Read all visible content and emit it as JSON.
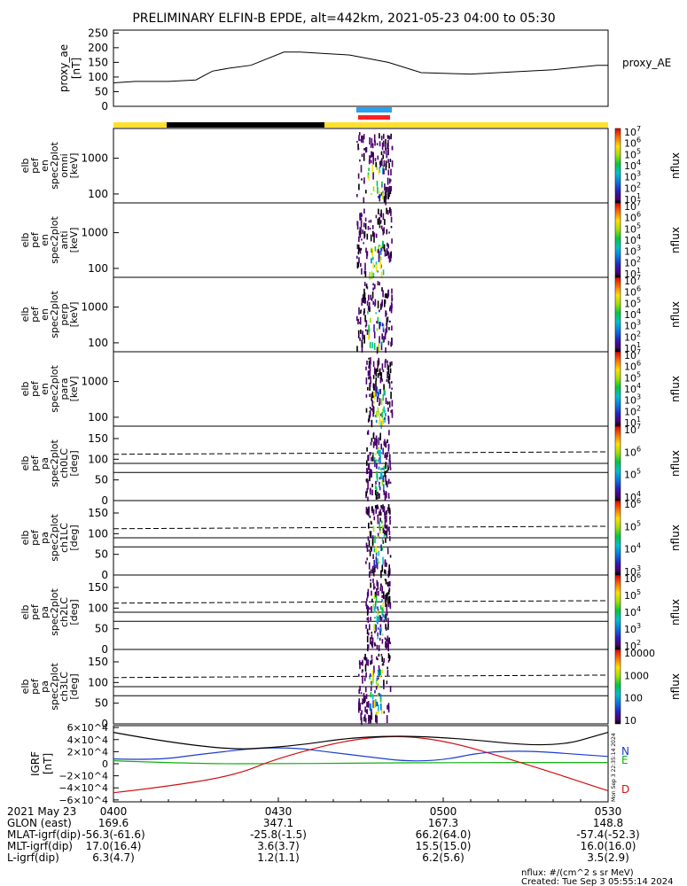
{
  "title": "PRELIMINARY ELFIN-B EPDE, alt=442km, 2021-05-23 04:00 to 05:30",
  "colors": {
    "sun": "#ffe030",
    "shadow": "#000000",
    "science_blue": "#2aa0f0",
    "science_red": "#ff2020",
    "n": "#1a3cd0",
    "e": "#10b010",
    "d": "#d01010"
  },
  "ae_panel": {
    "ylabel": [
      "proxy_ae",
      "[nT]"
    ],
    "legend": "proxy_AE",
    "ticks": [
      "250",
      "200",
      "150",
      "100",
      "50",
      "0"
    ],
    "ylim": [
      0,
      260
    ]
  },
  "spec_panels": [
    {
      "ylabel": [
        "elb",
        "pef",
        "en",
        "spec2plot",
        "omni",
        "[keV]"
      ],
      "ticks": [
        "1000",
        "100"
      ],
      "zlabel": "nflux",
      "zticks": [
        "10^7",
        "10^6",
        "10^5",
        "10^4",
        "10^3",
        "10^2",
        "10^1"
      ]
    },
    {
      "ylabel": [
        "elb",
        "pef",
        "en",
        "spec2plot",
        "anti",
        "[keV]"
      ],
      "ticks": [
        "1000",
        "100"
      ],
      "zlabel": "nflux",
      "zticks": [
        "10^7",
        "10^6",
        "10^5",
        "10^4",
        "10^3",
        "10^2",
        "10^1"
      ]
    },
    {
      "ylabel": [
        "elb",
        "pef",
        "en",
        "spec2plot",
        "perp",
        "[keV]"
      ],
      "ticks": [
        "1000",
        "100"
      ],
      "zlabel": "nflux",
      "zticks": [
        "10^7",
        "10^6",
        "10^5",
        "10^4",
        "10^3",
        "10^2",
        "10^1"
      ]
    },
    {
      "ylabel": [
        "elb",
        "pef",
        "en",
        "spec2plot",
        "para",
        "[keV]"
      ],
      "ticks": [
        "1000",
        "100"
      ],
      "zlabel": "nflux",
      "zticks": [
        "10^7",
        "10^6",
        "10^5",
        "10^4",
        "10^3",
        "10^2",
        "10^1"
      ]
    }
  ],
  "pa_panels": [
    {
      "ylabel": [
        "elb",
        "pef",
        "pa",
        "spec2plot",
        "ch0LC",
        "[deg]"
      ],
      "ticks": [
        "150",
        "100",
        "50",
        "0"
      ],
      "zlabel": "nflux",
      "zticks": [
        "10^7",
        "10^6",
        "10^5",
        "10^4"
      ]
    },
    {
      "ylabel": [
        "elb",
        "pef",
        "pa",
        "spec2plot",
        "ch1LC",
        "[deg]"
      ],
      "ticks": [
        "150",
        "100",
        "50",
        "0"
      ],
      "zlabel": "nflux",
      "zticks": [
        "10^6",
        "10^5",
        "10^4",
        "10^3"
      ]
    },
    {
      "ylabel": [
        "elb",
        "pef",
        "pa",
        "spec2plot",
        "ch2LC",
        "[deg]"
      ],
      "ticks": [
        "150",
        "100",
        "50",
        "0"
      ],
      "zlabel": "nflux",
      "zticks": [
        "10^6",
        "10^5",
        "10^4",
        "10^3",
        "10^2"
      ]
    },
    {
      "ylabel": [
        "elb",
        "pef",
        "pa",
        "spec2plot",
        "ch3LC",
        "[deg]"
      ],
      "ticks": [
        "150",
        "100",
        "50",
        "0"
      ],
      "zlabel": "nflux",
      "zticks": [
        "10000",
        "1000",
        "100",
        "10"
      ]
    }
  ],
  "igrf_panel": {
    "ylabel": [
      "IGRF",
      "[nT]"
    ],
    "ticks": [
      "6×10^4",
      "4×10^4",
      "2×10^4",
      "0",
      "−2×10^4",
      "−4×10^4",
      "−6×10^4"
    ],
    "legend": [
      "N",
      "E",
      "D"
    ],
    "side_note": "Mon Sep  3 22:35:14 2024"
  },
  "chart_data": [
    {
      "type": "line",
      "title": "PRELIMINARY ELFIN-B EPDE, alt=442km, 2021-05-23 04:00 to 05:30",
      "ylabel": "proxy_ae [nT]",
      "ylim": [
        0,
        260
      ],
      "series": [
        {
          "name": "proxy_AE",
          "x": [
            0,
            4,
            10,
            15,
            18,
            21,
            25,
            31,
            34,
            43,
            50,
            56,
            65,
            70,
            80,
            88,
            90
          ],
          "values": [
            80,
            85,
            85,
            90,
            120,
            130,
            140,
            185,
            185,
            175,
            150,
            115,
            110,
            115,
            125,
            140,
            140
          ]
        }
      ]
    },
    {
      "type": "line",
      "ylabel": "IGRF [nT]",
      "ylim": [
        -60000,
        60000
      ],
      "series": [
        {
          "name": "N",
          "x": [
            0,
            8,
            15,
            30,
            43,
            57,
            70,
            90
          ],
          "values": [
            8000,
            6000,
            15000,
            30000,
            15000,
            0,
            25000,
            12000
          ]
        },
        {
          "name": "E",
          "x": [
            0,
            15,
            30,
            43,
            60,
            90
          ],
          "values": [
            5000,
            0,
            0,
            1000,
            2000,
            2000
          ]
        },
        {
          "name": "D",
          "x": [
            0,
            8,
            22,
            30,
            45,
            58,
            75,
            90
          ],
          "values": [
            -48000,
            -40000,
            -20000,
            10000,
            45000,
            45000,
            0,
            -45000
          ]
        },
        {
          "name": "total",
          "x": [
            0,
            18,
            32,
            45,
            60,
            80,
            90
          ],
          "values": [
            52000,
            22000,
            28000,
            46000,
            45000,
            26000,
            52000
          ]
        }
      ]
    }
  ],
  "time_axis": {
    "row_labels": [
      "2021 May 23",
      "GLON (east)",
      "MLAT-igrf(dip)",
      "MLT-igrf(dip)",
      "L-igrf(dip)"
    ],
    "columns": [
      {
        "time": "0400",
        "glon": "169.6",
        "mlat": "-56.3(-61.6)",
        "mlt": "17.0(16.4)",
        "l": "6.3(4.7)"
      },
      {
        "time": "0430",
        "glon": "347.1",
        "mlat": "-25.8(-1.5)",
        "mlt": "3.6(3.7)",
        "l": "1.2(1.1)"
      },
      {
        "time": "0500",
        "glon": "167.3",
        "mlat": "66.2(64.0)",
        "mlt": "15.5(15.0)",
        "l": "6.2(5.6)"
      },
      {
        "time": "0530",
        "glon": "148.8",
        "mlat": "-57.4(-52.3)",
        "mlt": "16.0(16.0)",
        "l": "3.5(2.9)"
      }
    ]
  },
  "footer": {
    "units": "nflux: #/(cm^2 s sr MeV)",
    "created": "Created: Tue Sep  3 05:55:14 2024"
  }
}
